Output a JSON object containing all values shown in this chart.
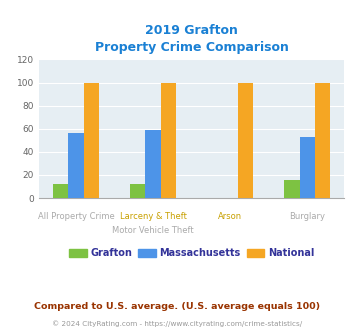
{
  "title_line1": "2019 Grafton",
  "title_line2": "Property Crime Comparison",
  "groups": [
    {
      "top": "",
      "bot": "All Property Crime",
      "grafton": 12,
      "mass": 56,
      "national": 100
    },
    {
      "top": "Larceny & Theft",
      "bot": "Motor Vehicle Theft",
      "grafton": 12,
      "mass": 59,
      "national": 100
    },
    {
      "top": "Arson",
      "bot": "",
      "grafton": 0,
      "mass": 0,
      "national": 100
    },
    {
      "top": "",
      "bot": "Burglary",
      "grafton": 16,
      "mass": 53,
      "national": 100
    }
  ],
  "color_grafton": "#7dc242",
  "color_mass": "#4d94e8",
  "color_national": "#f5a623",
  "color_title": "#1a80d4",
  "color_xlabel_top": "#c8a000",
  "color_xlabel_bot": "#aaaaaa",
  "color_axis_bg": "#e6eef3",
  "color_grid": "#ffffff",
  "ylim": [
    0,
    120
  ],
  "yticks": [
    0,
    20,
    40,
    60,
    80,
    100,
    120
  ],
  "legend_labels": [
    "Grafton",
    "Massachusetts",
    "National"
  ],
  "color_legend_text": "#333399",
  "footnote1": "Compared to U.S. average. (U.S. average equals 100)",
  "footnote2": "© 2024 CityRating.com - https://www.cityrating.com/crime-statistics/",
  "color_footnote1": "#993300",
  "color_footnote2": "#999999"
}
